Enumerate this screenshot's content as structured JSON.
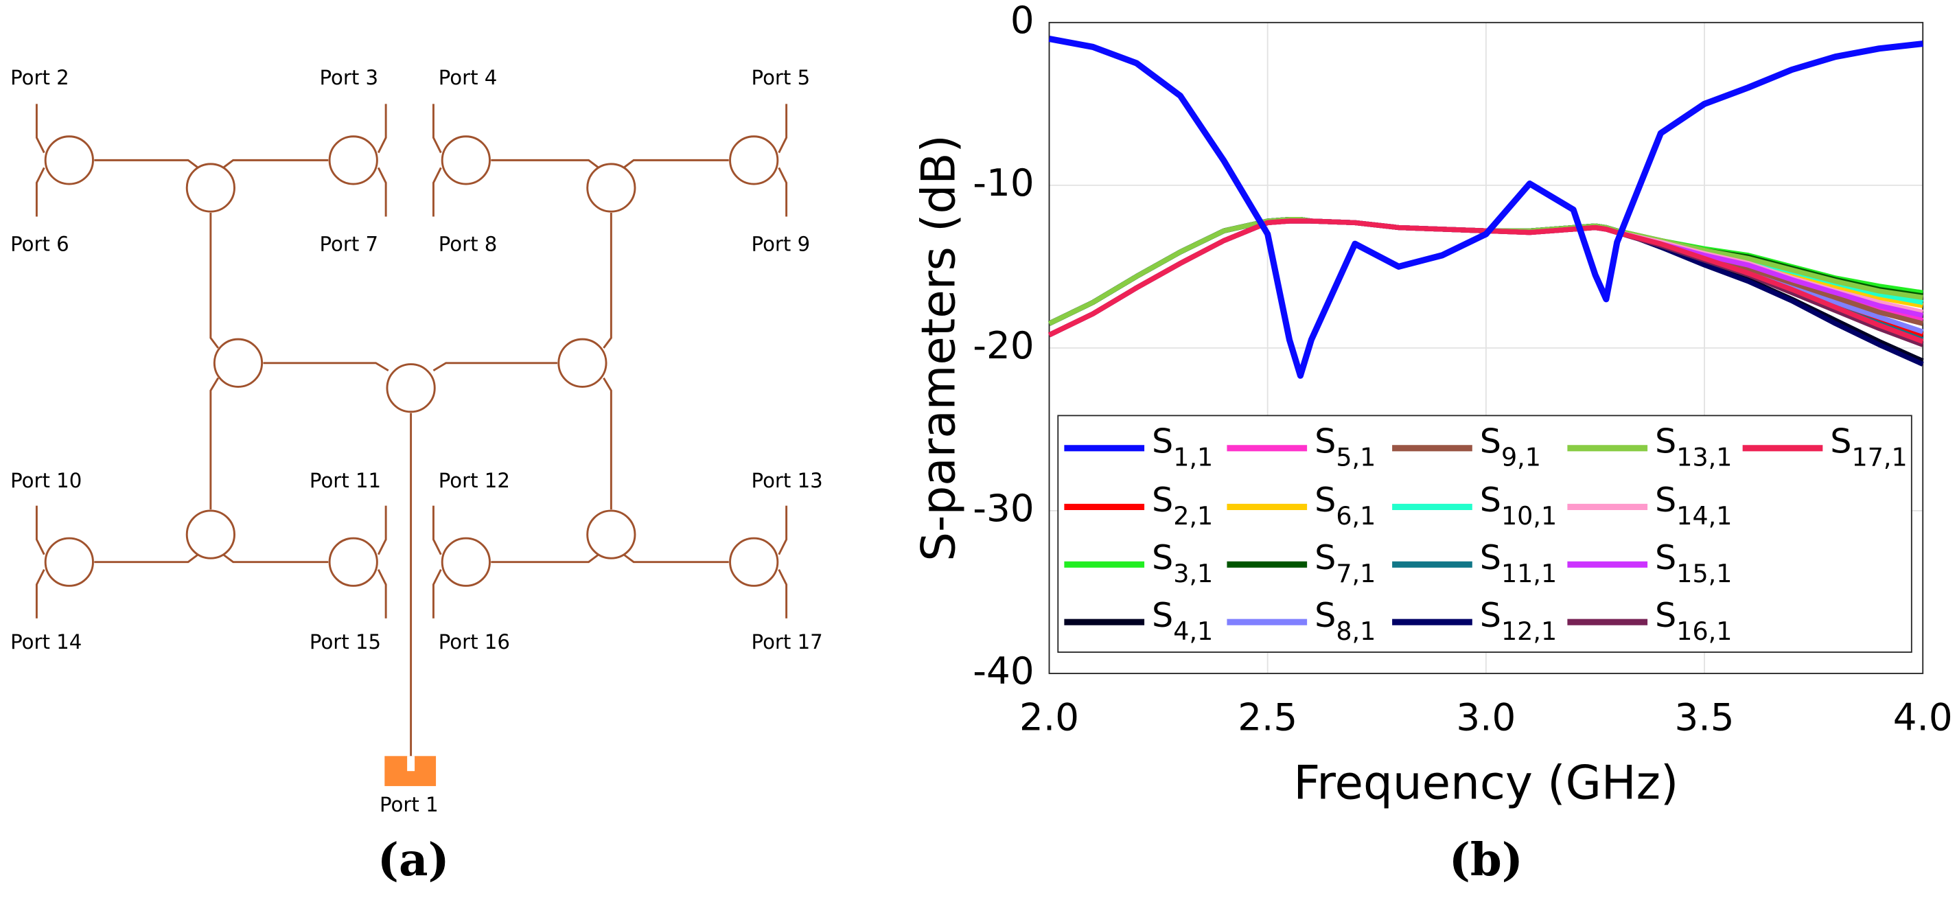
{
  "diagram": {
    "panel_label": "(a)",
    "port_labels": [
      "Port 1",
      "Port 2",
      "Port 3",
      "Port 4",
      "Port 5",
      "Port 6",
      "Port 7",
      "Port 8",
      "Port 9",
      "Port 10",
      "Port 11",
      "Port 12",
      "Port 13",
      "Port 14",
      "Port 15",
      "Port 16",
      "Port 17"
    ]
  },
  "chart_data": {
    "type": "line",
    "panel_label": "(b)",
    "x_label": "Frequency (GHz)",
    "y_label": "S-parameters (dB)",
    "xlim": [
      2,
      4
    ],
    "ylim": [
      -40,
      0
    ],
    "xticks": [
      {
        "value": 2,
        "label": "2.0"
      },
      {
        "value": 2.5,
        "label": "2.5"
      },
      {
        "value": 3,
        "label": "3.0"
      },
      {
        "value": 3.5,
        "label": "3.5"
      },
      {
        "value": 4,
        "label": "4.0"
      }
    ],
    "yticks": [
      0,
      -10,
      -20,
      -30,
      -40
    ],
    "grid": true,
    "x": [
      2.0,
      2.1,
      2.2,
      2.3,
      2.4,
      2.5,
      2.55,
      2.575,
      2.6,
      2.7,
      2.8,
      2.9,
      3.0,
      3.1,
      3.2,
      3.25,
      3.275,
      3.3,
      3.4,
      3.5,
      3.6,
      3.7,
      3.8,
      3.9,
      4.0
    ],
    "series": [
      {
        "name": "S1,1",
        "color": "#0a0aff",
        "values": [
          -1,
          -1.5,
          -2.5,
          -4.5,
          -8.5,
          -13,
          -19.5,
          -21.7,
          -19.5,
          -13.6,
          -15,
          -14.3,
          -13,
          -9.9,
          -11.5,
          -15.5,
          -17,
          -13.5,
          -6.8,
          -5,
          -4,
          -2.9,
          -2.1,
          -1.6,
          -1.3
        ]
      },
      {
        "name": "S2,1",
        "color": "#ff0000",
        "values": [
          -18.5,
          -17.2,
          -15.6,
          -14.1,
          -12.8,
          -12.2,
          -12.1,
          -12.1,
          -12.2,
          -12.3,
          -12.6,
          -12.7,
          -12.8,
          -12.8,
          -12.6,
          -12.5,
          -12.6,
          -12.8,
          -13.7,
          -14.5,
          -15.3,
          -16.3,
          -17.3,
          -18.3,
          -19.2
        ]
      },
      {
        "name": "S3,1",
        "color": "#22ee22",
        "values": [
          -18.5,
          -17.2,
          -15.6,
          -14.1,
          -12.8,
          -12.2,
          -12.1,
          -12.1,
          -12.2,
          -12.3,
          -12.6,
          -12.7,
          -12.8,
          -12.8,
          -12.6,
          -12.5,
          -12.6,
          -12.8,
          -13.4,
          -13.9,
          -14.3,
          -15.0,
          -15.7,
          -16.2,
          -16.6
        ]
      },
      {
        "name": "S4,1",
        "color": "#000022",
        "values": [
          -18.5,
          -17.2,
          -15.6,
          -14.1,
          -12.8,
          -12.2,
          -12.1,
          -12.1,
          -12.2,
          -12.3,
          -12.6,
          -12.7,
          -12.8,
          -12.8,
          -12.6,
          -12.5,
          -12.6,
          -12.8,
          -13.8,
          -14.8,
          -15.8,
          -17.0,
          -18.3,
          -19.6,
          -20.8
        ]
      },
      {
        "name": "S5,1",
        "color": "#ff33cc",
        "values": [
          -19.2,
          -17.9,
          -16.3,
          -14.8,
          -13.4,
          -12.3,
          -12.2,
          -12.2,
          -12.2,
          -12.3,
          -12.6,
          -12.7,
          -12.8,
          -12.9,
          -12.7,
          -12.6,
          -12.7,
          -12.9,
          -13.6,
          -14.3,
          -15.0,
          -15.9,
          -16.8,
          -17.6,
          -18.3
        ]
      },
      {
        "name": "S6,1",
        "color": "#ffcc00",
        "values": [
          -19.2,
          -17.9,
          -16.3,
          -14.8,
          -13.4,
          -12.3,
          -12.2,
          -12.2,
          -12.2,
          -12.3,
          -12.6,
          -12.7,
          -12.8,
          -12.9,
          -12.7,
          -12.6,
          -12.7,
          -12.9,
          -13.5,
          -14.1,
          -14.7,
          -15.5,
          -16.2,
          -16.9,
          -17.4
        ]
      },
      {
        "name": "S7,1",
        "color": "#005500",
        "values": [
          -18.5,
          -17.2,
          -15.6,
          -14.1,
          -12.8,
          -12.2,
          -12.1,
          -12.1,
          -12.2,
          -12.3,
          -12.6,
          -12.7,
          -12.8,
          -12.8,
          -12.6,
          -12.5,
          -12.6,
          -12.8,
          -13.4,
          -14.0,
          -14.4,
          -15.1,
          -15.8,
          -16.4,
          -16.8
        ]
      },
      {
        "name": "S8,1",
        "color": "#8080ff",
        "values": [
          -19.2,
          -17.9,
          -16.3,
          -14.8,
          -13.4,
          -12.3,
          -12.2,
          -12.2,
          -12.2,
          -12.3,
          -12.6,
          -12.7,
          -12.8,
          -12.9,
          -12.7,
          -12.6,
          -12.7,
          -12.9,
          -13.7,
          -14.5,
          -15.3,
          -16.2,
          -17.2,
          -18.1,
          -19.0
        ]
      },
      {
        "name": "S9,1",
        "color": "#995544",
        "values": [
          -19.2,
          -17.9,
          -16.3,
          -14.8,
          -13.4,
          -12.3,
          -12.2,
          -12.2,
          -12.2,
          -12.3,
          -12.6,
          -12.7,
          -12.8,
          -12.9,
          -12.7,
          -12.6,
          -12.7,
          -12.9,
          -13.6,
          -14.4,
          -15.1,
          -16.0,
          -16.9,
          -17.8,
          -18.5
        ]
      },
      {
        "name": "S10,1",
        "color": "#22ffcc",
        "values": [
          -18.5,
          -17.2,
          -15.6,
          -14.1,
          -12.8,
          -12.2,
          -12.1,
          -12.1,
          -12.2,
          -12.3,
          -12.6,
          -12.7,
          -12.8,
          -12.8,
          -12.6,
          -12.5,
          -12.6,
          -12.8,
          -13.5,
          -14.1,
          -14.6,
          -15.3,
          -16.0,
          -16.7,
          -17.2
        ]
      },
      {
        "name": "S11,1",
        "color": "#117788",
        "values": [
          -18.5,
          -17.2,
          -15.6,
          -14.1,
          -12.8,
          -12.2,
          -12.1,
          -12.1,
          -12.2,
          -12.3,
          -12.6,
          -12.7,
          -12.8,
          -12.8,
          -12.6,
          -12.5,
          -12.6,
          -12.8,
          -13.7,
          -14.6,
          -15.5,
          -16.5,
          -17.5,
          -18.5,
          -19.5
        ]
      },
      {
        "name": "S12,1",
        "color": "#000066",
        "values": [
          -18.5,
          -17.2,
          -15.6,
          -14.1,
          -12.8,
          -12.2,
          -12.1,
          -12.1,
          -12.2,
          -12.3,
          -12.6,
          -12.7,
          -12.8,
          -12.8,
          -12.6,
          -12.5,
          -12.6,
          -12.8,
          -13.8,
          -14.9,
          -15.9,
          -17.1,
          -18.5,
          -19.8,
          -21.0
        ]
      },
      {
        "name": "S13,1",
        "color": "#88cc44",
        "values": [
          -18.5,
          -17.2,
          -15.6,
          -14.1,
          -12.8,
          -12.2,
          -12.1,
          -12.1,
          -12.2,
          -12.3,
          -12.6,
          -12.7,
          -12.8,
          -12.8,
          -12.6,
          -12.5,
          -12.6,
          -12.8,
          -13.4,
          -14.0,
          -14.5,
          -15.2,
          -15.9,
          -16.5,
          -16.9
        ]
      },
      {
        "name": "S14,1",
        "color": "#ff99cc",
        "values": [
          -19.2,
          -17.9,
          -16.3,
          -14.8,
          -13.4,
          -12.3,
          -12.2,
          -12.2,
          -12.2,
          -12.3,
          -12.6,
          -12.7,
          -12.8,
          -12.9,
          -12.7,
          -12.6,
          -12.7,
          -12.9,
          -13.5,
          -14.2,
          -14.8,
          -15.7,
          -16.5,
          -17.2,
          -17.8
        ]
      },
      {
        "name": "S15,1",
        "color": "#cc33ff",
        "values": [
          -19.2,
          -17.9,
          -16.3,
          -14.8,
          -13.4,
          -12.3,
          -12.2,
          -12.2,
          -12.2,
          -12.3,
          -12.6,
          -12.7,
          -12.8,
          -12.9,
          -12.7,
          -12.6,
          -12.7,
          -12.9,
          -13.6,
          -14.3,
          -14.9,
          -15.8,
          -16.6,
          -17.4,
          -18.0
        ]
      },
      {
        "name": "S16,1",
        "color": "#772255",
        "values": [
          -19.2,
          -17.9,
          -16.3,
          -14.8,
          -13.4,
          -12.3,
          -12.2,
          -12.2,
          -12.2,
          -12.3,
          -12.6,
          -12.7,
          -12.8,
          -12.9,
          -12.7,
          -12.6,
          -12.7,
          -12.9,
          -13.7,
          -14.6,
          -15.5,
          -16.6,
          -17.7,
          -18.8,
          -19.8
        ]
      },
      {
        "name": "S17,1",
        "color": "#ee2255",
        "values": [
          -19.2,
          -17.9,
          -16.3,
          -14.8,
          -13.4,
          -12.3,
          -12.2,
          -12.2,
          -12.2,
          -12.3,
          -12.6,
          -12.7,
          -12.8,
          -12.9,
          -12.7,
          -12.6,
          -12.7,
          -12.9,
          -13.6,
          -14.5,
          -15.4,
          -16.4,
          -17.5,
          -18.6,
          -19.6
        ]
      }
    ]
  }
}
